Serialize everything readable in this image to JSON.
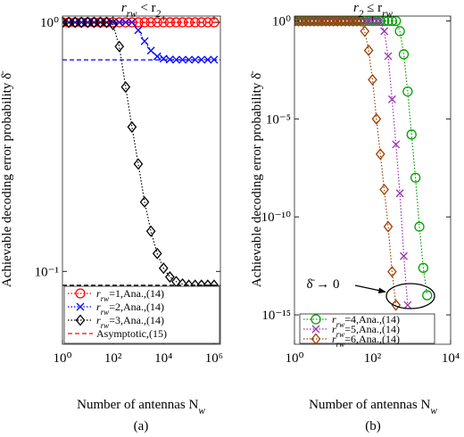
{
  "chart_data": [
    {
      "type": "line",
      "title": [
        "r",
        "rw",
        " < r",
        "2"
      ],
      "x_label": [
        "Number of antennas N",
        "w"
      ],
      "y_label": "Achievable decoding error probability δ̄",
      "caption": "(a)",
      "xscale": "log",
      "yscale": "log",
      "xlim": [
        1,
        1778000
      ],
      "ylim": [
        0.051,
        1.06
      ],
      "xticks": [
        {
          "value": 1,
          "label": "10⁰"
        },
        {
          "value": 100,
          "label": "10²"
        },
        {
          "value": 10000,
          "label": "10⁴"
        },
        {
          "value": 1000000,
          "label": "10⁶"
        }
      ],
      "yticks": [
        {
          "value": 0.1,
          "label": "10⁻¹"
        },
        {
          "value": 1,
          "label": "10⁰"
        }
      ],
      "legend": "bottom",
      "x": [
        1,
        1.778,
        3.162,
        5.623,
        10,
        17.78,
        31.62,
        56.23,
        100,
        177.8,
        316.2,
        562.3,
        1000,
        1778,
        3162,
        5623,
        10000,
        17780,
        31620,
        56230,
        100000,
        177800,
        316200,
        562300,
        1000000
      ],
      "series": [
        {
          "name": [
            "r",
            "rw",
            "=1,Ana.,(14)"
          ],
          "color": "#ff0000",
          "marker": "circle",
          "values": [
            1,
            1,
            1,
            1,
            1,
            1,
            1,
            1,
            1,
            1,
            1,
            1,
            1,
            1,
            1,
            1,
            1,
            1,
            1,
            1,
            1,
            1,
            1,
            1,
            1
          ]
        },
        {
          "name": [
            "r",
            "rw",
            "=2,Ana.,(14)"
          ],
          "color": "#0000ff",
          "marker": "x",
          "values": [
            1,
            1,
            1,
            1,
            1,
            1,
            1,
            1,
            1,
            1,
            1,
            1,
            0.93,
            0.84,
            0.77,
            0.73,
            0.715,
            0.71,
            0.708,
            0.708,
            0.708,
            0.708,
            0.708,
            0.708,
            0.708
          ]
        },
        {
          "name": [
            "r",
            "rw",
            "=3,Ana.,(14)"
          ],
          "color": "#000000",
          "marker": "diamond",
          "values": [
            1,
            1,
            1,
            1,
            1,
            1,
            1,
            1,
            0.98,
            0.8,
            0.55,
            0.38,
            0.27,
            0.19,
            0.145,
            0.118,
            0.103,
            0.095,
            0.091,
            0.089,
            0.088,
            0.088,
            0.088,
            0.088,
            0.088
          ]
        }
      ],
      "asymptote": {
        "name": "Asymptotic,(15)",
        "color": "#ff0000",
        "levels": [
          {
            "value": 1,
            "color": "#ff0000"
          },
          {
            "value": 0.707,
            "color": "#0000ff"
          },
          {
            "value": 0.088,
            "color": "#000000"
          }
        ]
      }
    },
    {
      "type": "line",
      "title": [
        "r",
        "2",
        " ≤ r",
        "rw"
      ],
      "x_label": [
        "Number of antennas N",
        "w"
      ],
      "y_label": "Achievable decoding error probability δ̄",
      "caption": "(b)",
      "xscale": "log",
      "yscale": "log",
      "xlim": [
        1,
        10000
      ],
      "ylim": [
        3.16e-17,
        1.78
      ],
      "xticks": [
        {
          "value": 1,
          "label": "10⁰"
        },
        {
          "value": 100,
          "label": "10²"
        },
        {
          "value": 10000,
          "label": "10⁴"
        }
      ],
      "yticks": [
        {
          "value": 1e-15,
          "label": "10⁻¹⁵"
        },
        {
          "value": 1e-10,
          "label": "10⁻¹⁰"
        },
        {
          "value": 1e-05,
          "label": "10⁻⁵"
        },
        {
          "value": 1,
          "label": "10⁰"
        }
      ],
      "legend": "bottom",
      "annotation": "δ̄ → 0",
      "x": [
        1,
        1.259,
        1.585,
        1.995,
        2.512,
        3.162,
        3.981,
        5.012,
        6.31,
        7.943,
        10,
        12.59,
        15.85,
        19.95,
        25.12,
        31.62,
        39.81,
        50.12,
        63.1,
        79.43,
        100,
        125.9,
        158.5,
        199.5,
        251.2,
        316.2,
        398.1,
        501.2,
        631,
        794.3,
        1000,
        1259,
        1585,
        1995,
        2512
      ],
      "series": [
        {
          "name": [
            "r",
            "rw",
            "=4,Ana.,(14)"
          ],
          "color": "#00a000",
          "marker": "circle",
          "values": [
            1,
            1,
            1,
            1,
            1,
            1,
            1,
            1,
            1,
            1,
            1,
            1,
            1,
            1,
            1,
            1,
            1,
            1,
            1,
            1,
            1,
            1,
            1,
            1,
            1,
            1,
            1,
            0.3,
            0.02,
            0.00025,
            1.6e-06,
            1e-08,
            3.16e-11,
            2.5e-13,
            1e-14
          ]
        },
        {
          "name": [
            "r",
            "rw",
            "=5,Ana.,(14)"
          ],
          "color": "#9a30b0",
          "marker": "x",
          "values": [
            1,
            1,
            1,
            1,
            1,
            1,
            1,
            1,
            1,
            1,
            1,
            1,
            1,
            1,
            1,
            1,
            1,
            1,
            1,
            1,
            1,
            1,
            1,
            0.3,
            0.016,
            0.0001,
            5e-07,
            1.6e-09,
            1e-12,
            3.16e-15,
            null,
            null,
            null,
            null,
            null
          ]
        },
        {
          "name": [
            "r",
            "rw",
            "=6,Ana.,(14)"
          ],
          "color": "#a04000",
          "marker": "diamond",
          "values": [
            1,
            1,
            1,
            1,
            1,
            1,
            1,
            1,
            1,
            1,
            1,
            1,
            1,
            1,
            1,
            1,
            1,
            1,
            0.3,
            0.0316,
            0.001,
            1e-05,
            1.6e-07,
            2.5e-09,
            3.16e-11,
            1.6e-13,
            3.16e-15,
            null,
            null,
            null,
            null,
            null,
            null,
            null,
            null
          ]
        }
      ]
    }
  ]
}
